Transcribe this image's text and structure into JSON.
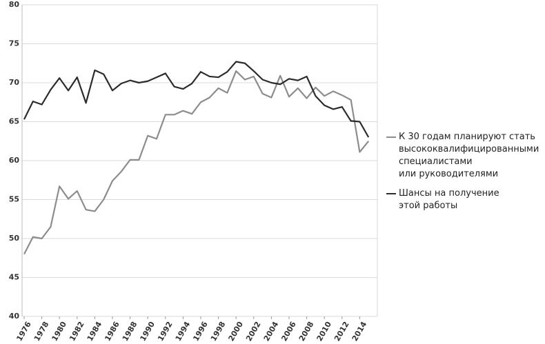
{
  "chart_data": {
    "type": "line",
    "x": [
      1976,
      1977,
      1978,
      1979,
      1980,
      1981,
      1982,
      1983,
      1984,
      1985,
      1986,
      1987,
      1988,
      1989,
      1990,
      1991,
      1992,
      1993,
      1994,
      1995,
      1996,
      1997,
      1998,
      1999,
      2000,
      2001,
      2002,
      2003,
      2004,
      2005,
      2006,
      2007,
      2008,
      2009,
      2010,
      2011,
      2012,
      2013,
      2014,
      2015
    ],
    "series": [
      {
        "name": "К 30 годам планируют стать\nвысококвалифицированными\nспециалистами\nили руководителями",
        "color": "#8c8c8c",
        "values": [
          48.0,
          50.2,
          50.0,
          51.5,
          56.7,
          55.1,
          56.1,
          53.7,
          53.5,
          55.0,
          57.4,
          58.6,
          60.1,
          60.1,
          63.2,
          62.8,
          65.9,
          65.9,
          66.4,
          66.0,
          67.5,
          68.1,
          69.3,
          68.7,
          71.5,
          70.4,
          70.8,
          68.6,
          68.1,
          70.9,
          68.2,
          69.3,
          68.0,
          69.4,
          68.3,
          68.9,
          68.4,
          67.8,
          61.1,
          62.5
        ]
      },
      {
        "name": "Шансы на получение\nэтой работы",
        "color": "#2b2b2b",
        "values": [
          65.3,
          67.6,
          67.2,
          69.1,
          70.6,
          69.0,
          70.7,
          67.4,
          71.6,
          71.1,
          69.0,
          69.9,
          70.3,
          70.0,
          70.2,
          70.7,
          71.2,
          69.5,
          69.2,
          69.9,
          71.4,
          70.8,
          70.7,
          71.4,
          72.7,
          72.5,
          71.5,
          70.4,
          70.0,
          69.8,
          70.5,
          70.3,
          70.8,
          68.3,
          67.1,
          66.6,
          66.9,
          65.1,
          65.0,
          63.0
        ]
      }
    ],
    "xlim": [
      1976,
      2016
    ],
    "xticks": [
      1976,
      1978,
      1980,
      1982,
      1984,
      1986,
      1988,
      1990,
      1992,
      1994,
      1996,
      1998,
      2000,
      2002,
      2004,
      2006,
      2008,
      2010,
      2012,
      2014
    ],
    "ylim": [
      40,
      80
    ],
    "yticks": [
      40,
      45,
      50,
      55,
      60,
      65,
      70,
      75,
      80
    ],
    "grid": true,
    "legend": "right"
  }
}
